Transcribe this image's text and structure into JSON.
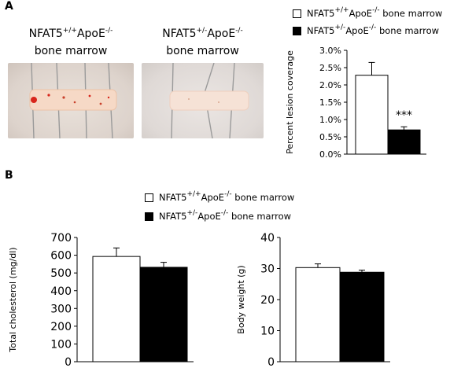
{
  "panels": {
    "a_label": "A",
    "b_label": "B"
  },
  "images": [
    {
      "caption_prefix": "NFAT5",
      "caption_sup1": "+/+",
      "caption_mid": "ApoE",
      "caption_sup2": "-/-",
      "caption_line2": "bone marrow"
    },
    {
      "caption_prefix": "NFAT5",
      "caption_sup1": "+/-",
      "caption_mid": "ApoE",
      "caption_sup2": "-/-",
      "caption_line2": "bone marrow"
    }
  ],
  "legend": [
    {
      "prefix": "NFAT5",
      "sup1": "+/+",
      "mid": "ApoE",
      "sup2": "-/-",
      "suffix": " bone marrow",
      "fill": "#ffffff"
    },
    {
      "prefix": "NFAT5",
      "sup1": "+/-",
      "mid": "ApoE",
      "sup2": "-/-",
      "suffix": " bone marrow",
      "fill": "#000000"
    }
  ],
  "colors": {
    "group1": "#ffffff",
    "group2": "#000000",
    "lesion": "#d8261c"
  },
  "chart_data": [
    {
      "type": "bar",
      "panel": "A",
      "categories": [
        "NFAT5+/+ApoE-/- bone marrow",
        "NFAT5+/-ApoE-/- bone marrow"
      ],
      "values": [
        2.28,
        0.7
      ],
      "errors": [
        0.37,
        0.09
      ],
      "fills": [
        "#ffffff",
        "#000000"
      ],
      "ylabel": "Percent lesion coverage",
      "ylim": [
        0,
        3.0
      ],
      "yticks": [
        0,
        0.5,
        1.0,
        1.5,
        2.0,
        2.5,
        3.0
      ],
      "ytick_labels": [
        "0.0%",
        "0.5%",
        "1.0%",
        "1.5%",
        "2.0%",
        "2.5%",
        "3.0%"
      ],
      "annotation": "***",
      "grid": false
    },
    {
      "type": "bar",
      "panel": "B",
      "categories": [
        "NFAT5+/+ApoE-/- bone marrow",
        "NFAT5+/-ApoE-/- bone marrow"
      ],
      "values": [
        593,
        532
      ],
      "errors": [
        48,
        28
      ],
      "fills": [
        "#ffffff",
        "#000000"
      ],
      "ylabel": "Total cholesterol (mg/dl)",
      "ylim": [
        0,
        700
      ],
      "yticks": [
        0,
        100,
        200,
        300,
        400,
        500,
        600,
        700
      ],
      "ytick_labels": [
        "0",
        "100",
        "200",
        "300",
        "400",
        "500",
        "600",
        "700"
      ],
      "grid": false
    },
    {
      "type": "bar",
      "panel": "B",
      "categories": [
        "NFAT5+/+ApoE-/- bone marrow",
        "NFAT5+/-ApoE-/- bone marrow"
      ],
      "values": [
        30.3,
        28.8
      ],
      "errors": [
        1.2,
        0.7
      ],
      "fills": [
        "#ffffff",
        "#000000"
      ],
      "ylabel": "Body weight (g)",
      "ylim": [
        0,
        40
      ],
      "yticks": [
        0,
        10,
        20,
        30,
        40
      ],
      "ytick_labels": [
        "0",
        "10",
        "20",
        "30",
        "40"
      ],
      "grid": false
    }
  ]
}
